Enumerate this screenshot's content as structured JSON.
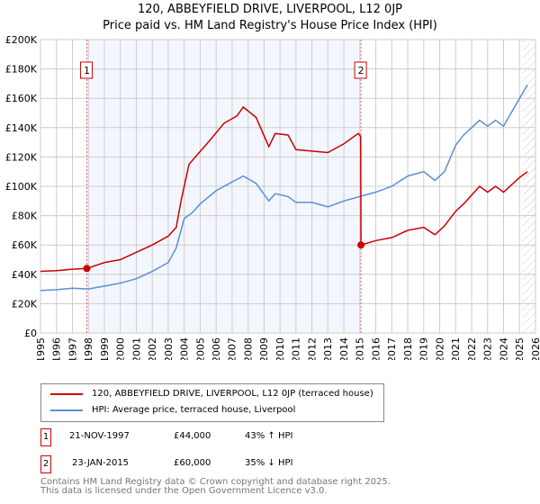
{
  "title": "120, ABBEYFIELD DRIVE, LIVERPOOL, L12 0JP",
  "subtitle": "Price paid vs. HM Land Registry's House Price Index (HPI)",
  "chart_data": {
    "type": "line",
    "title": "120, ABBEYFIELD DRIVE, LIVERPOOL, L12 0JP",
    "ylim": [
      0,
      200000
    ],
    "xlim": [
      1995,
      2026
    ],
    "yticks": [
      "£0",
      "£20K",
      "£40K",
      "£60K",
      "£80K",
      "£100K",
      "£120K",
      "£140K",
      "£160K",
      "£180K",
      "£200K"
    ],
    "xticks": [
      "1995",
      "1996",
      "1997",
      "1998",
      "1999",
      "2000",
      "2001",
      "2002",
      "2003",
      "2004",
      "2005",
      "2006",
      "2007",
      "2008",
      "2009",
      "2010",
      "2011",
      "2012",
      "2013",
      "2014",
      "2015",
      "2016",
      "2017",
      "2018",
      "2019",
      "2020",
      "2021",
      "2022",
      "2023",
      "2024",
      "2025",
      "2026"
    ],
    "series": [
      {
        "name": "120, ABBEYFIELD DRIVE, LIVERPOOL, L12 0JP (terraced house)",
        "color": "#cc0000",
        "x": [
          1995,
          1996,
          1997,
          1997.9,
          1999,
          2000,
          2001,
          2002,
          2003,
          2003.5,
          2003.8,
          2004.3,
          2004.7,
          2005.5,
          2006.5,
          2007.3,
          2007.7,
          2008.5,
          2009.3,
          2009.7,
          2010.5,
          2011,
          2012,
          2013,
          2014,
          2014.9,
          2015.05,
          2015.07,
          2016,
          2017,
          2018,
          2019,
          2019.7,
          2020.3,
          2021,
          2021.5,
          2022.5,
          2023,
          2023.5,
          2024,
          2025,
          2025.5
        ],
        "y": [
          42000,
          42500,
          43500,
          44000,
          48000,
          50000,
          55000,
          60000,
          66000,
          72000,
          90000,
          115000,
          120000,
          130000,
          143000,
          148000,
          154000,
          147000,
          127000,
          136000,
          135000,
          125000,
          124000,
          123000,
          129000,
          136000,
          134000,
          60000,
          63000,
          65000,
          70000,
          72000,
          67000,
          73000,
          83000,
          88000,
          100000,
          96000,
          100000,
          96000,
          106000,
          110000
        ]
      },
      {
        "name": "HPI: Average price, terraced house, Liverpool",
        "color": "#5b8fd4",
        "x": [
          1995,
          1996,
          1997,
          1998,
          1999,
          2000,
          2001,
          2002,
          2003,
          2003.5,
          2004,
          2004.5,
          2005,
          2006,
          2007,
          2007.7,
          2008.5,
          2009.3,
          2009.7,
          2010.5,
          2011,
          2012,
          2013,
          2014,
          2015,
          2016,
          2017,
          2018,
          2019,
          2019.7,
          2020.3,
          2021,
          2021.5,
          2022.5,
          2023,
          2023.5,
          2024,
          2025,
          2025.5
        ],
        "y": [
          29000,
          29500,
          30500,
          30000,
          32000,
          34000,
          37000,
          42000,
          48000,
          58000,
          78000,
          82000,
          88000,
          97000,
          103000,
          107000,
          102000,
          90000,
          95000,
          93000,
          89000,
          89000,
          86000,
          90000,
          93000,
          96000,
          100000,
          107000,
          110000,
          104000,
          110000,
          128000,
          135000,
          145000,
          141000,
          145000,
          141000,
          160000,
          169000
        ]
      }
    ],
    "annotations": [
      {
        "label": "1",
        "x": 1997.9,
        "y": 44000
      },
      {
        "label": "2",
        "x": 2015.07,
        "y": 60000
      }
    ]
  },
  "legend": {
    "items": [
      "120, ABBEYFIELD DRIVE, LIVERPOOL, L12 0JP (terraced house)",
      "HPI: Average price, terraced house, Liverpool"
    ]
  },
  "transactions": [
    {
      "num": "1",
      "date": "21-NOV-1997",
      "price": "£44,000",
      "hpi": "43% ↑ HPI"
    },
    {
      "num": "2",
      "date": "23-JAN-2015",
      "price": "£60,000",
      "hpi": "35% ↓ HPI"
    }
  ],
  "footer": [
    "Contains HM Land Registry data © Crown copyright and database right 2025.",
    "This data is licensed under the Open Government Licence v3.0."
  ]
}
